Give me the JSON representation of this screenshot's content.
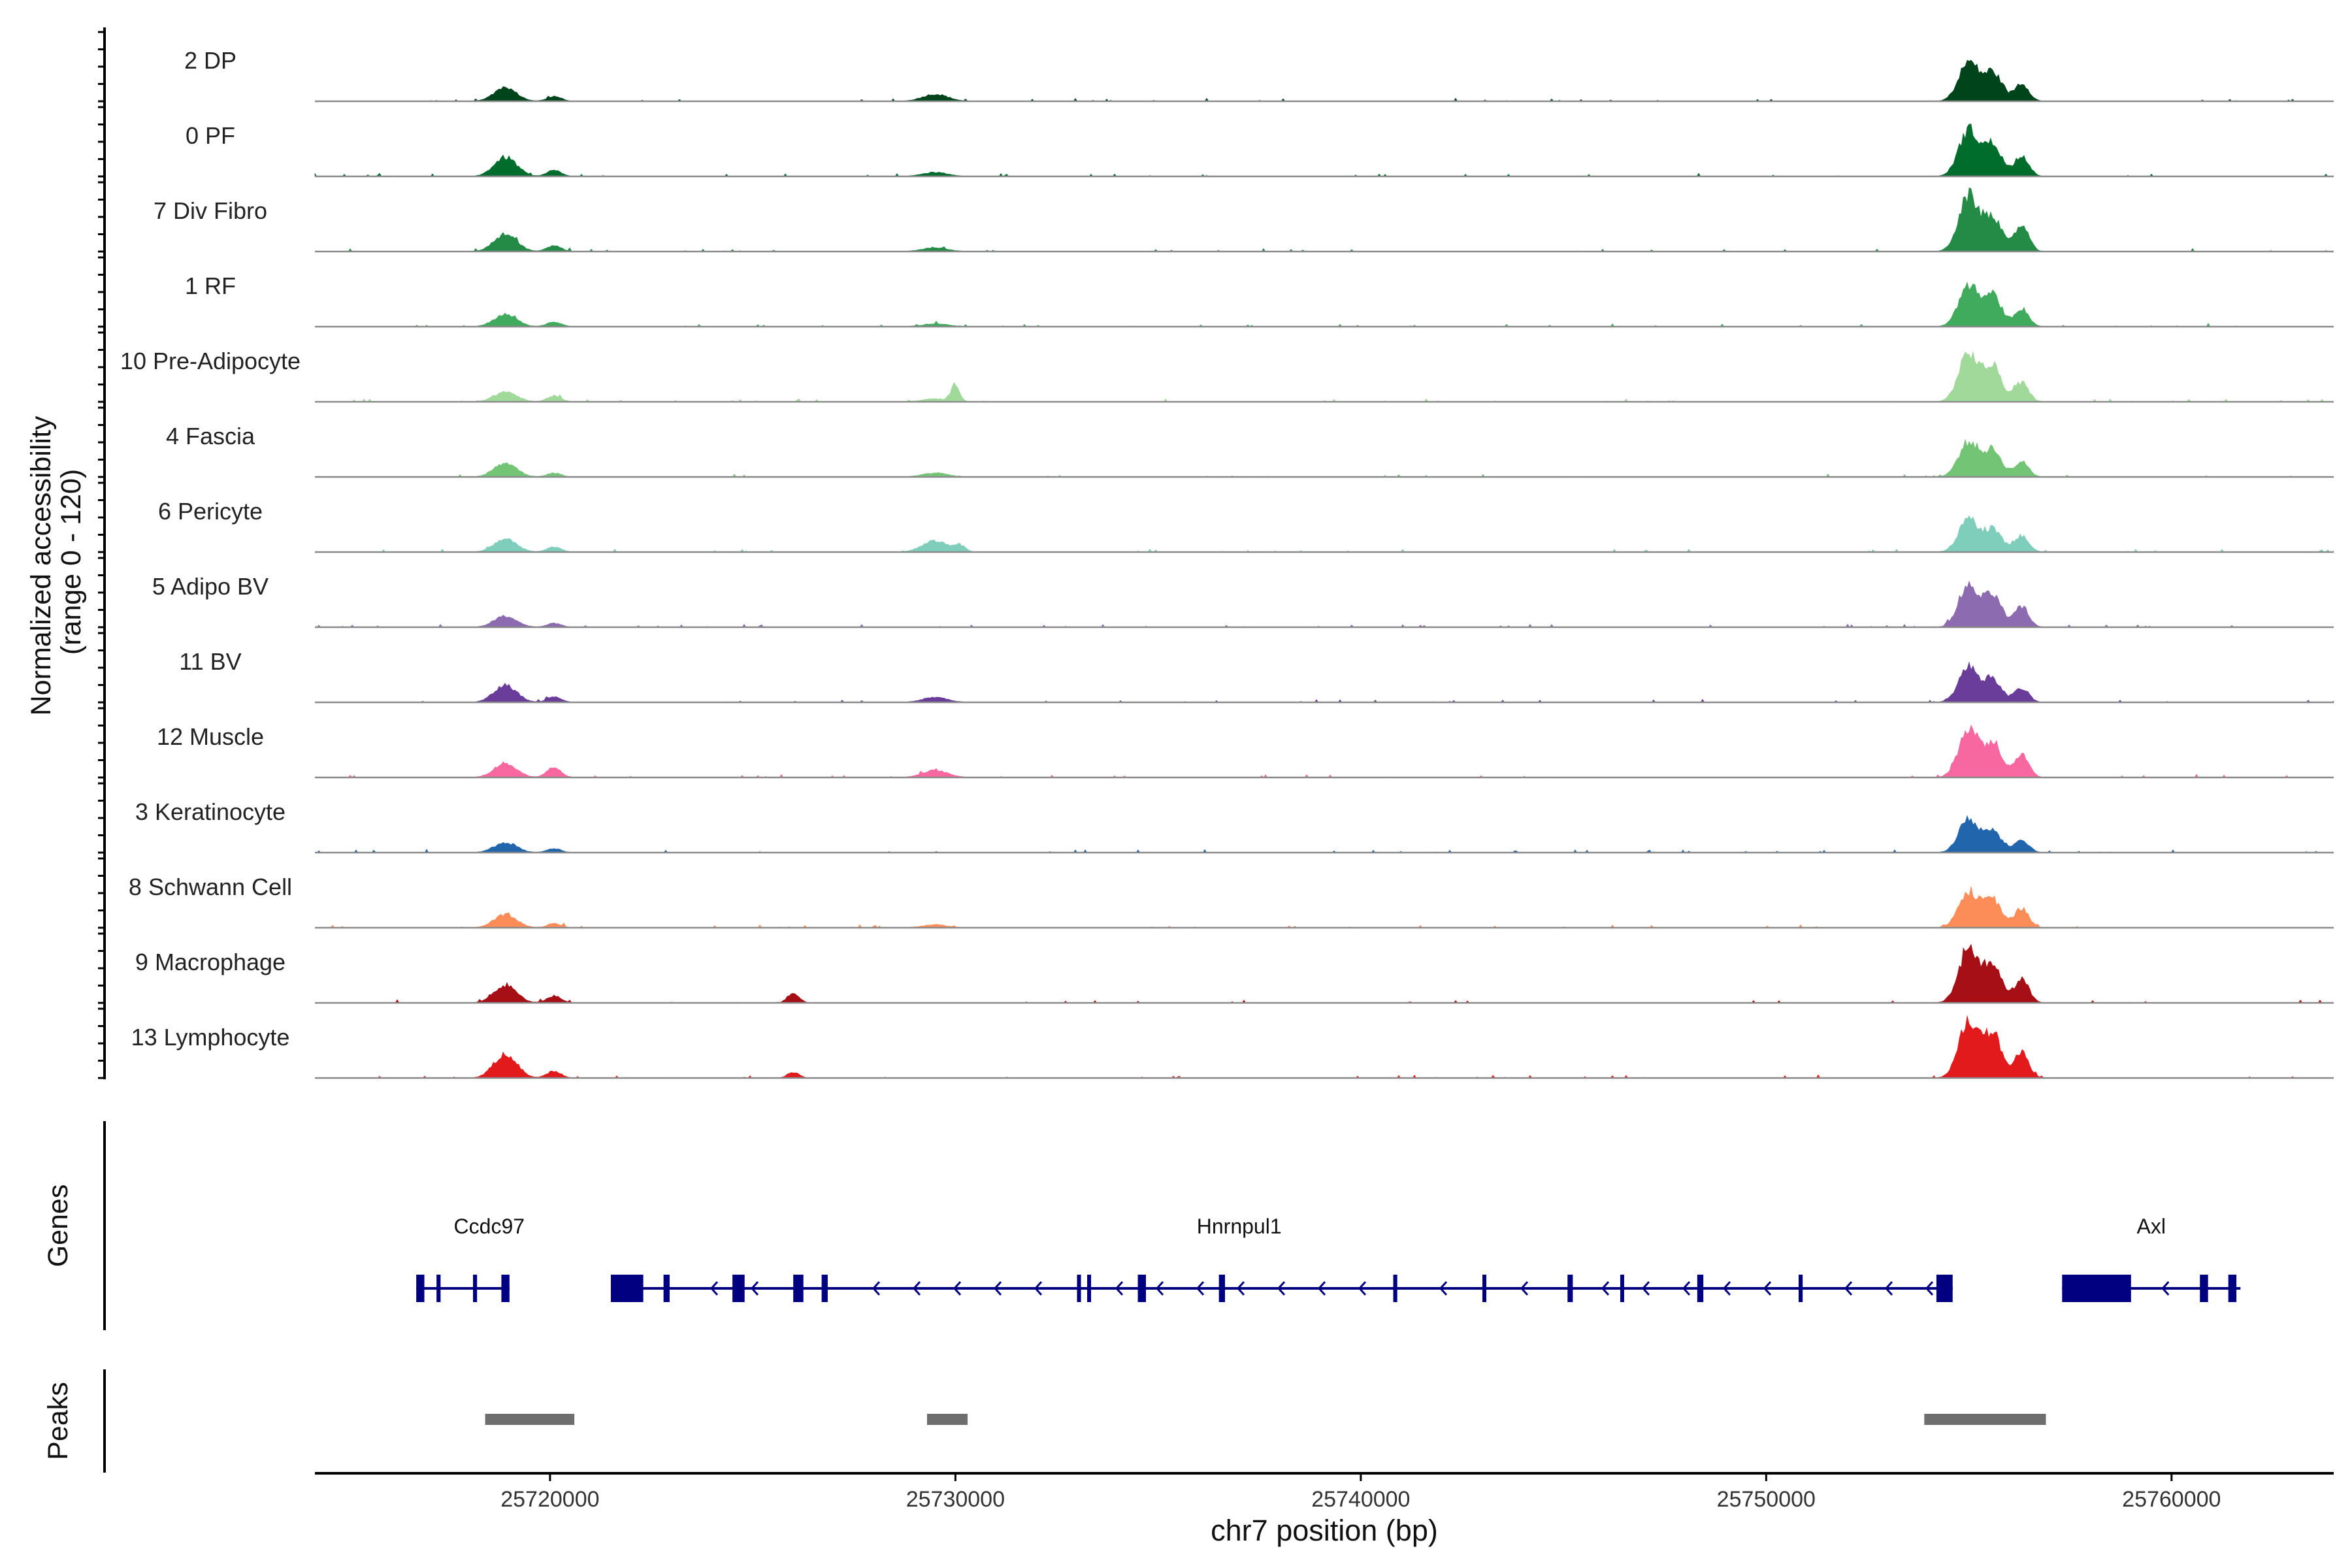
{
  "chart_data": {
    "type": "area",
    "title": "",
    "ylabel_line1": "Normalized accessibility",
    "ylabel_line2": "(range 0 - 120)",
    "y_range": [
      0,
      120
    ],
    "xlabel": "chr7 position (bp)",
    "x_range": [
      25714200,
      25764000
    ],
    "x_ticks": [
      25720000,
      25730000,
      25740000,
      25750000,
      25760000
    ],
    "x_tick_labels": [
      "25720000",
      "25730000",
      "25740000",
      "25750000",
      "25760000"
    ],
    "tracks": [
      {
        "name": "2 DP",
        "color": "#00441b",
        "peaks": [
          [
            25718900,
            26,
            400
          ],
          [
            25720100,
            10,
            250
          ],
          [
            25729500,
            14,
            450
          ],
          [
            25755000,
            78,
            350
          ],
          [
            25755600,
            56,
            300
          ],
          [
            25756300,
            36,
            250
          ]
        ]
      },
      {
        "name": "0 PF",
        "color": "#006d2c",
        "peaks": [
          [
            25718900,
            38,
            400
          ],
          [
            25720100,
            12,
            250
          ],
          [
            25729500,
            8,
            450
          ],
          [
            25755000,
            92,
            350
          ],
          [
            25755600,
            62,
            300
          ],
          [
            25756300,
            42,
            250
          ]
        ]
      },
      {
        "name": "7 Div Fibro",
        "color": "#238b45",
        "peaks": [
          [
            25718900,
            34,
            400
          ],
          [
            25720100,
            12,
            250
          ],
          [
            25729500,
            8,
            450
          ],
          [
            25755000,
            110,
            350
          ],
          [
            25755600,
            66,
            300
          ],
          [
            25756300,
            52,
            250
          ]
        ]
      },
      {
        "name": "1 RF",
        "color": "#41ab5d",
        "peaks": [
          [
            25718900,
            24,
            400
          ],
          [
            25720100,
            10,
            250
          ],
          [
            25729500,
            6,
            450
          ],
          [
            25755000,
            82,
            350
          ],
          [
            25755600,
            60,
            300
          ],
          [
            25756300,
            36,
            250
          ]
        ]
      },
      {
        "name": "10 Pre-Adipocyte",
        "color": "#a1d99b",
        "peaks": [
          [
            25718900,
            20,
            400
          ],
          [
            25720100,
            12,
            250
          ],
          [
            25729500,
            6,
            450
          ],
          [
            25730000,
            34,
            150
          ],
          [
            25755000,
            96,
            350
          ],
          [
            25755600,
            68,
            300
          ],
          [
            25756300,
            38,
            250
          ]
        ]
      },
      {
        "name": "4 Fascia",
        "color": "#74c476",
        "peaks": [
          [
            25718900,
            28,
            400
          ],
          [
            25720100,
            8,
            250
          ],
          [
            25729500,
            8,
            450
          ],
          [
            25755000,
            70,
            350
          ],
          [
            25755600,
            52,
            300
          ],
          [
            25756300,
            30,
            250
          ]
        ]
      },
      {
        "name": "6 Pericyte",
        "color": "#7fcdbb",
        "peaks": [
          [
            25718900,
            26,
            400
          ],
          [
            25720100,
            10,
            250
          ],
          [
            25729500,
            22,
            450
          ],
          [
            25730100,
            12,
            200
          ],
          [
            25755000,
            64,
            350
          ],
          [
            25755600,
            44,
            300
          ],
          [
            25756300,
            32,
            250
          ]
        ]
      },
      {
        "name": "5 Adipo BV",
        "color": "#8c6bb1",
        "peaks": [
          [
            25718900,
            22,
            400
          ],
          [
            25720100,
            8,
            250
          ],
          [
            25755000,
            80,
            350
          ],
          [
            25755600,
            62,
            300
          ],
          [
            25756300,
            40,
            250
          ]
        ]
      },
      {
        "name": "11 BV",
        "color": "#6a3d9a",
        "peaks": [
          [
            25718900,
            34,
            400
          ],
          [
            25720100,
            12,
            250
          ],
          [
            25729500,
            10,
            450
          ],
          [
            25755000,
            70,
            350
          ],
          [
            25755600,
            42,
            300
          ],
          [
            25756300,
            28,
            250
          ]
        ]
      },
      {
        "name": "12 Muscle",
        "color": "#f768a1",
        "peaks": [
          [
            25718900,
            28,
            400
          ],
          [
            25720100,
            20,
            250
          ],
          [
            25729500,
            14,
            450
          ],
          [
            25755000,
            96,
            350
          ],
          [
            25755600,
            68,
            300
          ],
          [
            25756300,
            46,
            250
          ]
        ]
      },
      {
        "name": "3 Keratinocyte",
        "color": "#2166ac",
        "peaks": [
          [
            25718900,
            20,
            400
          ],
          [
            25720100,
            8,
            250
          ],
          [
            25755000,
            66,
            350
          ],
          [
            25755600,
            40,
            300
          ],
          [
            25756300,
            26,
            250
          ]
        ]
      },
      {
        "name": "8 Schwann Cell",
        "color": "#fc8d59",
        "peaks": [
          [
            25718900,
            26,
            400
          ],
          [
            25720100,
            8,
            250
          ],
          [
            25729500,
            6,
            450
          ],
          [
            25755000,
            72,
            350
          ],
          [
            25755600,
            54,
            300
          ],
          [
            25756300,
            38,
            250
          ]
        ]
      },
      {
        "name": "9 Macrophage",
        "color": "#a50f15",
        "peaks": [
          [
            25718900,
            34,
            400
          ],
          [
            25720100,
            14,
            250
          ],
          [
            25726000,
            20,
            200
          ],
          [
            25755000,
            108,
            350
          ],
          [
            25755600,
            74,
            300
          ],
          [
            25756300,
            48,
            250
          ]
        ]
      },
      {
        "name": "13 Lymphocyte",
        "color": "#e31a1c",
        "peaks": [
          [
            25718900,
            48,
            400
          ],
          [
            25720100,
            14,
            250
          ],
          [
            25726000,
            12,
            200
          ],
          [
            25755000,
            112,
            350
          ],
          [
            25755600,
            86,
            300
          ],
          [
            25756300,
            50,
            250
          ]
        ]
      }
    ],
    "genes_label": "Genes",
    "genes": [
      {
        "name": "Ccdc97",
        "label_x": 25718500,
        "start": 25716700,
        "end": 25719000,
        "strand": "-",
        "exons": [
          [
            25716700,
            25716900
          ],
          [
            25717200,
            25717300
          ],
          [
            25718100,
            25718200
          ],
          [
            25718800,
            25719000
          ]
        ]
      },
      {
        "name": "Hnrnpul1",
        "label_x": 25737000,
        "start": 25721500,
        "end": 25754600,
        "strand": "-",
        "exons": [
          [
            25721500,
            25722300
          ],
          [
            25722800,
            25722950
          ],
          [
            25724500,
            25724800
          ],
          [
            25726000,
            25726250
          ],
          [
            25726700,
            25726850
          ],
          [
            25733000,
            25733080
          ],
          [
            25733250,
            25733330
          ],
          [
            25734500,
            25734700
          ],
          [
            25736500,
            25736650
          ],
          [
            25740800,
            25740900
          ],
          [
            25743000,
            25743080
          ],
          [
            25745100,
            25745230
          ],
          [
            25746400,
            25746450
          ],
          [
            25748300,
            25748450
          ],
          [
            25750800,
            25750900
          ],
          [
            25754200,
            25754600
          ]
        ]
      },
      {
        "name": "Axl",
        "label_x": 25759500,
        "start": 25757300,
        "end": 25761700,
        "strand": "-",
        "exons": [
          [
            25757300,
            25759000
          ],
          [
            25760700,
            25760900
          ],
          [
            25761400,
            25761600
          ]
        ]
      }
    ],
    "peaks_label": "Peaks",
    "peak_regions": [
      [
        25718400,
        25720600
      ],
      [
        25729300,
        25730300
      ],
      [
        25753900,
        25756900
      ]
    ]
  }
}
